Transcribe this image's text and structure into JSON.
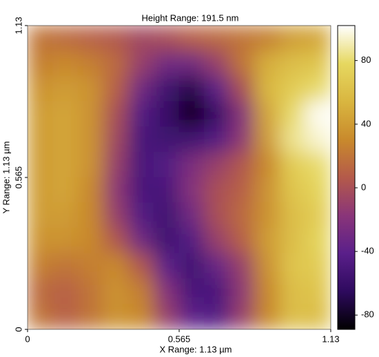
{
  "chart_data": {
    "type": "heatmap",
    "title": "Height Range:  191.5 nm",
    "x_label": "X Range:  1.13 µm",
    "y_label": "Y Range:  1.13 µm",
    "xlim": [
      0,
      1.13
    ],
    "ylim": [
      0,
      1.13
    ],
    "xticks": [
      0,
      0.565,
      1.13
    ],
    "yticks": [
      0,
      0.565,
      1.13
    ],
    "zlim": [
      -89,
      102
    ],
    "colorbar_ticks": [
      -80,
      -40,
      0,
      40,
      80
    ],
    "colorscale": [
      "#000000",
      "#2e0a5e",
      "#5a1f8a",
      "#8a3579",
      "#b45a4a",
      "#c98a2c",
      "#d9b640",
      "#e6d860",
      "#ffffff"
    ],
    "z": [
      [
        20,
        15,
        10,
        5,
        -5,
        0,
        10,
        15,
        20,
        25,
        40,
        45
      ],
      [
        25,
        30,
        25,
        15,
        -10,
        -30,
        -30,
        -10,
        20,
        50,
        60,
        65
      ],
      [
        35,
        40,
        35,
        10,
        -30,
        -55,
        -70,
        -40,
        0,
        55,
        70,
        80
      ],
      [
        40,
        45,
        35,
        0,
        -45,
        -60,
        -85,
        -60,
        -20,
        45,
        80,
        100
      ],
      [
        40,
        45,
        35,
        -5,
        -50,
        -55,
        -55,
        -45,
        -15,
        40,
        85,
        95
      ],
      [
        40,
        45,
        35,
        -10,
        -50,
        -45,
        -25,
        -10,
        5,
        30,
        70,
        80
      ],
      [
        40,
        45,
        30,
        -15,
        -50,
        -50,
        -20,
        0,
        10,
        35,
        65,
        75
      ],
      [
        40,
        40,
        30,
        -10,
        -45,
        -55,
        -30,
        0,
        15,
        35,
        60,
        70
      ],
      [
        35,
        35,
        30,
        5,
        -30,
        -55,
        -45,
        -10,
        10,
        40,
        60,
        75
      ],
      [
        25,
        20,
        25,
        30,
        5,
        -40,
        -55,
        -35,
        -10,
        35,
        65,
        70
      ],
      [
        15,
        10,
        20,
        35,
        25,
        -20,
        -50,
        -50,
        -15,
        30,
        60,
        65
      ],
      [
        20,
        10,
        20,
        35,
        30,
        -10,
        -40,
        -45,
        -10,
        30,
        60,
        60
      ]
    ]
  }
}
